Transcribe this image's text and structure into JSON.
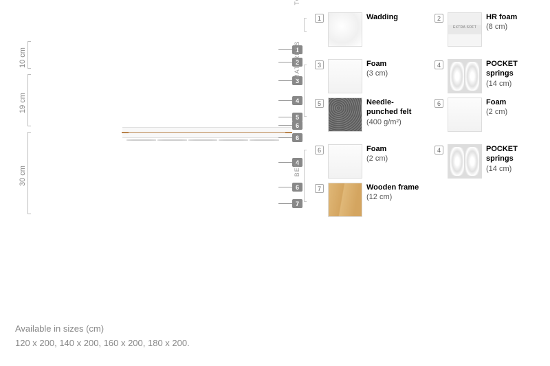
{
  "dimensions": {
    "top": "10 cm",
    "mid": "19 cm",
    "bot": "30 cm"
  },
  "callouts": [
    "1",
    "2",
    "3",
    "4",
    "5",
    "6",
    "6",
    "4",
    "6",
    "7"
  ],
  "sections": [
    {
      "label": "TOP MATTRESS",
      "items": [
        {
          "num": "1",
          "swatch": "wadding",
          "name": "Wadding",
          "sub": ""
        },
        {
          "num": "2",
          "swatch": "hrfoam",
          "name": "HR foam",
          "sub": "(8 cm)"
        }
      ]
    },
    {
      "label": "MATTRESS",
      "items": [
        {
          "num": "3",
          "swatch": "foam",
          "name": "Foam",
          "sub": "(3 cm)"
        },
        {
          "num": "4",
          "swatch": "pocket",
          "name": "POCKET springs",
          "sub": "(14 cm)"
        },
        {
          "num": "5",
          "swatch": "felt",
          "name": "Needle-punched felt",
          "sub": "(400 g/m²)"
        },
        {
          "num": "6",
          "swatch": "foam",
          "name": "Foam",
          "sub": "(2 cm)"
        }
      ]
    },
    {
      "label": "BED",
      "items": [
        {
          "num": "6",
          "swatch": "foam",
          "name": "Foam",
          "sub": "(2 cm)"
        },
        {
          "num": "4",
          "swatch": "pocket",
          "name": "POCKET springs",
          "sub": "(14 cm)"
        },
        {
          "num": "7",
          "swatch": "wood",
          "name": "Wooden frame",
          "sub": "(12 cm)"
        }
      ]
    }
  ],
  "footer": {
    "line1": "Available in sizes (cm)",
    "line2": "120 x 200, 140 x 200, 160 x 200, 180 x 200."
  },
  "colors": {
    "cover": "#9e9e9e",
    "calloutBg": "#888",
    "wood": "#d9a86a"
  }
}
